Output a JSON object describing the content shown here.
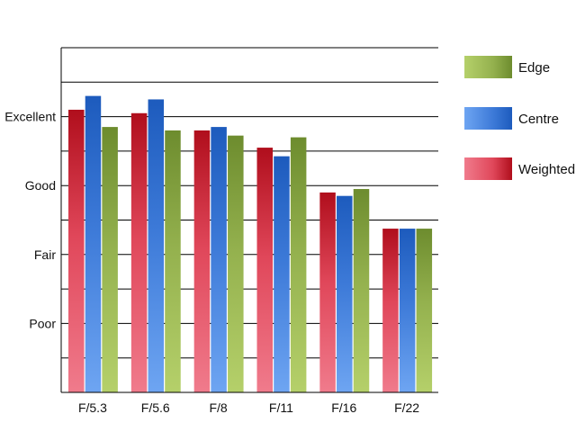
{
  "chart_data": {
    "type": "bar",
    "categories": [
      "F/5.3",
      "F/5.6",
      "F/8",
      "F/11",
      "F/16",
      "F/22"
    ],
    "y_tick_labels": [
      "Poor",
      "Fair",
      "Good",
      "Excellent"
    ],
    "y_tick_values": [
      2,
      4,
      6,
      8
    ],
    "ylim": [
      0,
      10
    ],
    "grid": true,
    "legend_position": "right",
    "series": [
      {
        "name": "Weighted",
        "values": [
          8.2,
          8.1,
          7.6,
          7.1,
          5.8,
          4.75
        ],
        "colors": {
          "light": "#f07b8c",
          "mid": "#e0475a",
          "dark": "#b00e1c"
        }
      },
      {
        "name": "Centre",
        "values": [
          8.6,
          8.5,
          7.7,
          6.85,
          5.7,
          4.75
        ],
        "colors": {
          "light": "#6ea5f2",
          "mid": "#3d7ad8",
          "dark": "#1d5bbd"
        }
      },
      {
        "name": "Edge",
        "values": [
          7.7,
          7.6,
          7.45,
          7.4,
          5.9,
          4.75
        ],
        "colors": {
          "light": "#b5d06a",
          "mid": "#94b14e",
          "dark": "#6d8c2e"
        }
      }
    ],
    "legend_order": [
      "Edge",
      "Centre",
      "Weighted"
    ]
  }
}
